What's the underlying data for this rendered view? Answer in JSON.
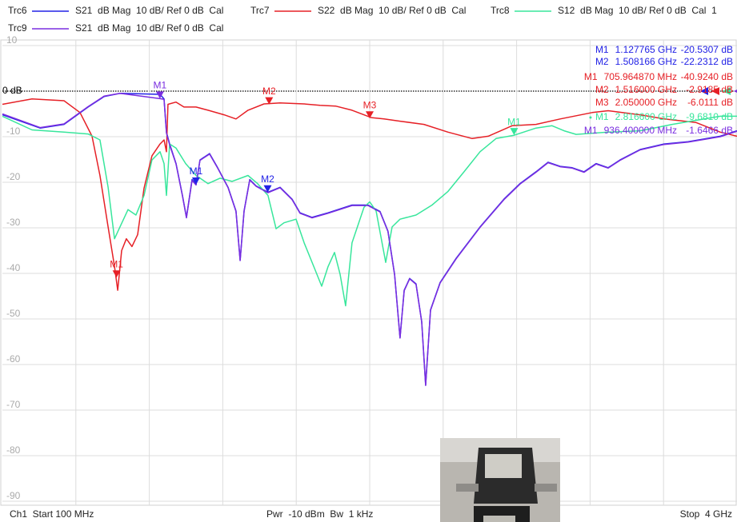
{
  "chart_data": {
    "type": "line",
    "xlim": [
      0.1,
      4
    ],
    "xticks": [
      0.49,
      0.88,
      1.27,
      1.66,
      2.05,
      2.44,
      2.83,
      3.22,
      3.61
    ],
    "ylim": [
      -90,
      10
    ],
    "yticks": [
      10,
      {
        "value": 0,
        "label": "0 dB"
      },
      -10,
      -20,
      -30,
      -40,
      -50,
      -60,
      -70,
      -80,
      -90
    ],
    "grid": true,
    "start_label": "Ch1  Start 100 MHz",
    "center_label": "Pwr  -10 dBm  Bw  1 kHz",
    "stop_label": "Stop  4 GHz",
    "series": [
      {
        "name": "Trc6",
        "description": "S21  dB Mag  10 dB/ Ref 0 dB  Cal",
        "color": "#2222e6",
        "x": [
          0.1,
          0.3,
          0.427,
          0.555,
          0.64,
          0.724,
          0.937,
          0.958,
          0.971,
          0.988,
          1.022,
          1.056,
          1.077,
          1.107,
          1.128,
          1.149,
          1.2,
          1.243,
          1.298,
          1.34,
          1.362,
          1.383,
          1.413,
          1.447,
          1.51,
          1.574,
          1.638,
          1.68,
          1.744,
          1.829,
          1.956,
          2.041,
          2.105,
          2.147,
          2.182,
          2.211,
          2.233,
          2.262,
          2.296,
          2.326,
          2.347,
          2.373,
          2.424,
          2.509,
          2.636,
          2.763,
          2.848,
          2.933,
          2.997,
          3.061,
          3.125,
          3.188,
          3.252,
          3.316,
          3.379,
          3.486,
          3.613,
          3.741,
          3.911,
          4.0
        ],
        "values": [
          -5.2,
          -8.1,
          -7.3,
          -3.5,
          -1.2,
          -0.5,
          -0.7,
          -1.7,
          -9.0,
          -11.6,
          -15.9,
          -22.9,
          -27.7,
          -19.4,
          -20.5,
          -15.1,
          -13.7,
          -16.8,
          -21.1,
          -26.3,
          -37.1,
          -26.3,
          -19.4,
          -20.8,
          -22.2,
          -21.1,
          -23.7,
          -26.7,
          -27.7,
          -26.7,
          -25.0,
          -25.0,
          -26.4,
          -30.7,
          -40.2,
          -54.1,
          -43.7,
          -41.1,
          -42.3,
          -50.6,
          -64.5,
          -48.0,
          -42.0,
          -36.7,
          -29.8,
          -23.7,
          -20.3,
          -17.7,
          -15.6,
          -16.5,
          -16.8,
          -17.7,
          -15.9,
          -16.8,
          -15.1,
          -12.8,
          -11.6,
          -11.1,
          -9.9,
          -8.7
        ],
        "markers": [
          {
            "label": "M1",
            "x": 1.127765,
            "y": -20.5307,
            "x_label": "1.127765 GHz",
            "y_label": "-20.5307 dB"
          },
          {
            "label": "M2",
            "x": 1.508166,
            "y": -22.2312,
            "x_label": "1.508166 GHz",
            "y_label": "-22.2312 dB"
          }
        ]
      },
      {
        "name": "Trc7",
        "description": "S22  dB Mag  10 dB/ Ref 0 dB  Cal",
        "color": "#e62026",
        "x": [
          0.1,
          0.257,
          0.427,
          0.512,
          0.576,
          0.618,
          0.661,
          0.695,
          0.712,
          0.733,
          0.758,
          0.788,
          0.818,
          0.852,
          0.894,
          0.937,
          0.958,
          0.971,
          0.979,
          1.022,
          1.064,
          1.128,
          1.192,
          1.277,
          1.34,
          1.404,
          1.489,
          1.574,
          1.702,
          1.786,
          1.871,
          1.956,
          2.058,
          2.126,
          2.211,
          2.338,
          2.466,
          2.594,
          2.679,
          2.806,
          2.933,
          3.061,
          3.231,
          3.316,
          3.486,
          3.613,
          3.783,
          3.911,
          4.0
        ],
        "values": [
          -2.9,
          -1.7,
          -2.1,
          -4.7,
          -9.9,
          -18.5,
          -29.8,
          -38.5,
          -43.7,
          -35.0,
          -32.4,
          -34.1,
          -31.5,
          -21.3,
          -14.2,
          -11.6,
          -10.7,
          -13.3,
          -2.9,
          -2.4,
          -3.5,
          -3.5,
          -4.2,
          -5.2,
          -6.1,
          -4.2,
          -2.8,
          -2.6,
          -2.8,
          -3.1,
          -3.3,
          -4.2,
          -5.8,
          -6.1,
          -6.6,
          -7.3,
          -9.0,
          -10.4,
          -9.9,
          -7.6,
          -7.3,
          -6.1,
          -4.7,
          -4.3,
          -5.2,
          -6.1,
          -6.9,
          -9.0,
          -9.9
        ],
        "markers": [
          {
            "label": "M1",
            "x": 0.70596487,
            "y": -40.924,
            "x_label": "705.964870 MHz",
            "y_label": "-40.9240 dB"
          },
          {
            "label": "M2",
            "x": 1.516,
            "y": -2.9185,
            "x_label": "1.516000 GHz",
            "y_label": "-2.9185 dB"
          },
          {
            "label": "M3",
            "x": 2.05,
            "y": -6.0111,
            "x_label": "2.050000 GHz",
            "y_label": "-6.0111 dB"
          }
        ]
      },
      {
        "name": "Trc8",
        "description": "S12  dB Mag  10 dB/ Ref 0 dB  Cal  1",
        "color": "#38e69c",
        "x": [
          0.1,
          0.257,
          0.427,
          0.555,
          0.618,
          0.661,
          0.695,
          0.724,
          0.767,
          0.809,
          0.852,
          0.894,
          0.937,
          0.958,
          0.971,
          0.988,
          1.022,
          1.073,
          1.128,
          1.192,
          1.255,
          1.319,
          1.404,
          1.455,
          1.51,
          1.553,
          1.595,
          1.659,
          1.702,
          1.753,
          1.795,
          1.829,
          1.863,
          1.893,
          1.922,
          1.956,
          2.02,
          2.05,
          2.084,
          2.135,
          2.169,
          2.211,
          2.296,
          2.381,
          2.466,
          2.551,
          2.636,
          2.721,
          2.8166,
          2.933,
          3.018,
          3.082,
          3.146,
          3.316,
          3.486,
          3.656,
          3.783,
          3.911,
          4.0
        ],
        "values": [
          -5.5,
          -8.5,
          -9.0,
          -9.4,
          -10.7,
          -21.1,
          -32.4,
          -29.8,
          -26.0,
          -27.2,
          -22.9,
          -15.1,
          -13.3,
          -15.9,
          -22.9,
          -11.6,
          -12.5,
          -15.9,
          -18.5,
          -20.3,
          -19.1,
          -19.8,
          -18.5,
          -20.3,
          -22.9,
          -30.2,
          -28.9,
          -28.1,
          -33.3,
          -38.5,
          -42.8,
          -38.5,
          -35.4,
          -40.2,
          -47.1,
          -33.3,
          -25.5,
          -24.3,
          -26.3,
          -37.6,
          -29.8,
          -28.1,
          -27.2,
          -25.0,
          -22.0,
          -17.7,
          -13.3,
          -10.4,
          -9.681,
          -8.1,
          -7.6,
          -8.7,
          -9.5,
          -9.0,
          -8.7,
          -7.3,
          -6.4,
          -5.5,
          -5.5
        ],
        "markers": [
          {
            "label": "M1",
            "x": 2.8166,
            "y": -9.681,
            "x_label": "2.816600 GHz",
            "y_label": "-9.6810 dB"
          }
        ]
      },
      {
        "name": "Trc9",
        "description": "S21  dB Mag  10 dB/ Ref 0 dB  Cal",
        "color": "#7a2ee0",
        "x": [
          0.1,
          0.3,
          0.427,
          0.555,
          0.64,
          0.724,
          0.9364,
          0.958,
          0.971,
          0.988,
          1.022,
          1.056,
          1.077,
          1.107,
          1.128,
          1.149,
          1.2,
          1.243,
          1.298,
          1.34,
          1.362,
          1.383,
          1.413,
          1.447,
          1.51,
          1.574,
          1.638,
          1.68,
          1.744,
          1.829,
          1.956,
          2.041,
          2.105,
          2.147,
          2.182,
          2.211,
          2.233,
          2.262,
          2.296,
          2.326,
          2.347,
          2.373,
          2.424,
          2.509,
          2.636,
          2.763,
          2.848,
          2.933,
          2.997,
          3.061,
          3.125,
          3.188,
          3.252,
          3.316,
          3.379,
          3.486,
          3.613,
          3.741,
          3.911,
          4.0
        ],
        "values": [
          -5.0,
          -8.0,
          -7.2,
          -3.4,
          -1.1,
          -0.5,
          -1.6466,
          -1.8,
          -9.2,
          -11.8,
          -16.0,
          -23.0,
          -27.8,
          -19.6,
          -20.6,
          -15.2,
          -13.8,
          -16.9,
          -21.2,
          -26.4,
          -37.2,
          -26.4,
          -19.5,
          -20.9,
          -22.3,
          -21.2,
          -23.8,
          -26.8,
          -27.8,
          -26.8,
          -25.1,
          -25.1,
          -26.5,
          -30.8,
          -40.3,
          -54.2,
          -43.8,
          -41.2,
          -42.4,
          -50.7,
          -64.6,
          -48.1,
          -42.1,
          -36.8,
          -29.9,
          -23.8,
          -20.4,
          -17.8,
          -15.7,
          -16.6,
          -16.9,
          -17.8,
          -16.0,
          -16.9,
          -15.2,
          -12.9,
          -11.7,
          -11.2,
          -10.0,
          -8.8
        ],
        "markers": [
          {
            "label": "M1",
            "x": 0.9364,
            "y": -1.6466,
            "x_label": "936.400000 MHz",
            "y_label": "-1.6466 dB"
          }
        ]
      }
    ]
  }
}
